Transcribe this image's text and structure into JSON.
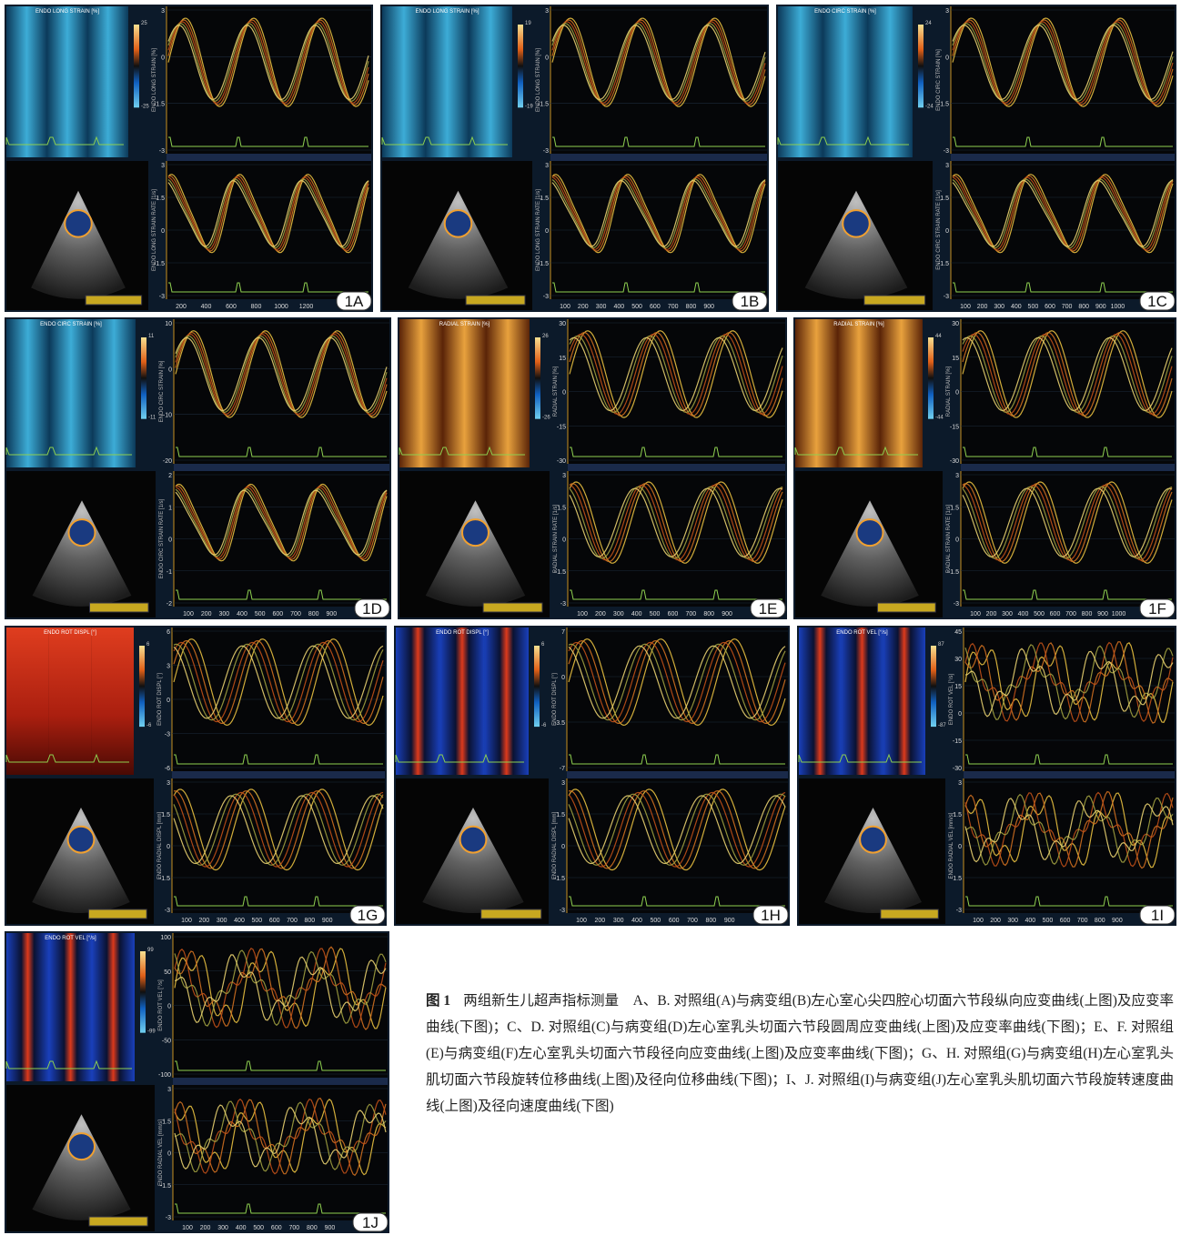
{
  "panels": [
    {
      "label": "1A",
      "map_title": "ENDO LONG STRAIN [%]",
      "scale_max": "25",
      "scale_min": "-25",
      "top": {
        "axis_label": "ENDO LONG STRAIN [%]",
        "yticks": [
          "3",
          "0",
          "-1.5",
          "-3"
        ]
      },
      "bottom": {
        "axis_label": "ENDO LONG STRAIN RATE [1/s]",
        "yticks": [
          "3",
          "1.5",
          "0",
          "-1.5",
          "-3"
        ],
        "xticks": [
          "200",
          "400",
          "600",
          "800",
          "1000",
          "1200"
        ]
      }
    },
    {
      "label": "1B",
      "map_title": "ENDO LONG STRAIN [%]",
      "scale_max": "19",
      "scale_min": "-19",
      "top": {
        "axis_label": "ENDO LONG STRAIN [%]",
        "yticks": [
          "3",
          "0",
          "-1.5",
          "-3"
        ]
      },
      "bottom": {
        "axis_label": "ENDO LONG STRAIN RATE [1/s]",
        "yticks": [
          "3",
          "1.5",
          "0",
          "-1.5",
          "-3"
        ],
        "xticks": [
          "100",
          "200",
          "300",
          "400",
          "500",
          "600",
          "700",
          "800",
          "900"
        ]
      }
    },
    {
      "label": "1C",
      "map_title": "ENDO CIRC STRAIN [%]",
      "scale_max": "24",
      "scale_min": "-24",
      "top": {
        "axis_label": "ENDO CIRC STRAIN [%]",
        "yticks": [
          "3",
          "0",
          "-1.5",
          "-3"
        ]
      },
      "bottom": {
        "axis_label": "ENDO CIRC STRAIN RATE [1/s]",
        "yticks": [
          "3",
          "1.5",
          "0",
          "-1.5",
          "-3"
        ],
        "xticks": [
          "100",
          "200",
          "300",
          "400",
          "500",
          "600",
          "700",
          "800",
          "900",
          "1000"
        ]
      }
    },
    {
      "label": "1D",
      "map_title": "ENDO CIRC STRAIN [%]",
      "scale_max": "11",
      "scale_min": "-11",
      "top": {
        "axis_label": "ENDO CIRC STRAIN [%]",
        "yticks": [
          "10",
          "0",
          "-10",
          "-20"
        ]
      },
      "bottom": {
        "axis_label": "ENDO CIRC STRAIN RATE [1/s]",
        "yticks": [
          "2",
          "1",
          "0",
          "-1",
          "-2"
        ],
        "xticks": [
          "100",
          "200",
          "300",
          "400",
          "500",
          "600",
          "700",
          "800",
          "900"
        ]
      }
    },
    {
      "label": "1E",
      "map_title": "RADIAL STRAIN [%]",
      "scale_max": "26",
      "scale_min": "-26",
      "top": {
        "axis_label": "RADIAL STRAIN [%]",
        "yticks": [
          "30",
          "15",
          "0",
          "-15",
          "-30"
        ]
      },
      "bottom": {
        "axis_label": "RADIAL STRAIN RATE [1/s]",
        "yticks": [
          "3",
          "1.5",
          "0",
          "-1.5",
          "-3"
        ],
        "xticks": [
          "100",
          "200",
          "300",
          "400",
          "500",
          "600",
          "700",
          "800",
          "900"
        ]
      }
    },
    {
      "label": "1F",
      "map_title": "RADIAL STRAIN [%]",
      "scale_max": "44",
      "scale_min": "-44",
      "top": {
        "axis_label": "RADIAL STRAIN [%]",
        "yticks": [
          "30",
          "15",
          "0",
          "-15",
          "-30"
        ]
      },
      "bottom": {
        "axis_label": "RADIAL STRAIN RATE [1/s]",
        "yticks": [
          "3",
          "1.5",
          "0",
          "-1.5",
          "-3"
        ],
        "xticks": [
          "100",
          "200",
          "300",
          "400",
          "500",
          "600",
          "700",
          "800",
          "900",
          "1000"
        ]
      }
    },
    {
      "label": "1G",
      "map_title": "ENDO ROT DISPL [°]",
      "scale_max": "6",
      "scale_min": "-6",
      "top": {
        "axis_label": "ENDO ROT DISPL [°]",
        "yticks": [
          "6",
          "3",
          "0",
          "-3",
          "-6"
        ]
      },
      "bottom": {
        "axis_label": "ENDO RADIAL DISPL [mm]",
        "yticks": [
          "3",
          "1.5",
          "0",
          "-1.5",
          "-3"
        ],
        "xticks": [
          "100",
          "200",
          "300",
          "400",
          "500",
          "600",
          "700",
          "800",
          "900"
        ]
      }
    },
    {
      "label": "1H",
      "map_title": "ENDO ROT DISPL [°]",
      "scale_max": "6",
      "scale_min": "-6",
      "top": {
        "axis_label": "ENDO ROT DISPL [°]",
        "yticks": [
          "7",
          "0",
          "-3.5",
          "-7"
        ]
      },
      "bottom": {
        "axis_label": "ENDO RADIAL DISPL [mm]",
        "yticks": [
          "3",
          "1.5",
          "0",
          "-1.5",
          "-3"
        ],
        "xticks": [
          "100",
          "200",
          "300",
          "400",
          "500",
          "600",
          "700",
          "800",
          "900"
        ]
      }
    },
    {
      "label": "1I",
      "map_title": "ENDO ROT VEL [°/s]",
      "scale_max": "87",
      "scale_min": "-87",
      "top": {
        "axis_label": "ENDO ROT VEL [°/s]",
        "yticks": [
          "45",
          "30",
          "15",
          "0",
          "-15",
          "-30"
        ]
      },
      "bottom": {
        "axis_label": "ENDO RADIAL VEL [mm/s]",
        "yticks": [
          "3",
          "1.5",
          "0",
          "-1.5",
          "-3"
        ],
        "xticks": [
          "100",
          "200",
          "300",
          "400",
          "500",
          "600",
          "700",
          "800",
          "900"
        ]
      }
    },
    {
      "label": "1J",
      "map_title": "ENDO ROT VEL [°/s]",
      "scale_max": "99",
      "scale_min": "-99",
      "top": {
        "axis_label": "ENDO ROT VEL [°/s]",
        "yticks": [
          "100",
          "50",
          "0",
          "-50",
          "-100"
        ]
      },
      "bottom": {
        "axis_label": "ENDO RADIAL VEL [mm/s]",
        "yticks": [
          "3",
          "1.5",
          "0",
          "-1.5",
          "-3"
        ],
        "xticks": [
          "100",
          "200",
          "300",
          "400",
          "500",
          "600",
          "700",
          "800",
          "900"
        ]
      }
    }
  ],
  "caption": {
    "label": "图 1",
    "text": "两组新生儿超声指标测量　A、B. 对照组(A)与病变组(B)左心室心尖四腔心切面六节段纵向应变曲线(上图)及应变率曲线(下图)；C、D. 对照组(C)与病变组(D)左心室乳头切面六节段圆周应变曲线(上图)及应变率曲线(下图)；E、F. 对照组(E)与病变组(F)左心室乳头切面六节段径向应变曲线(上图)及应变率曲线(下图)；G、H. 对照组(G)与病变组(H)左心室乳头肌切面六节段旋转位移曲线(上图)及径向位移曲线(下图)；I、J. 对照组(I)与病变组(J)左心室乳头肌切面六节段旋转速度曲线(上图)及径向速度曲线(下图)"
  }
}
